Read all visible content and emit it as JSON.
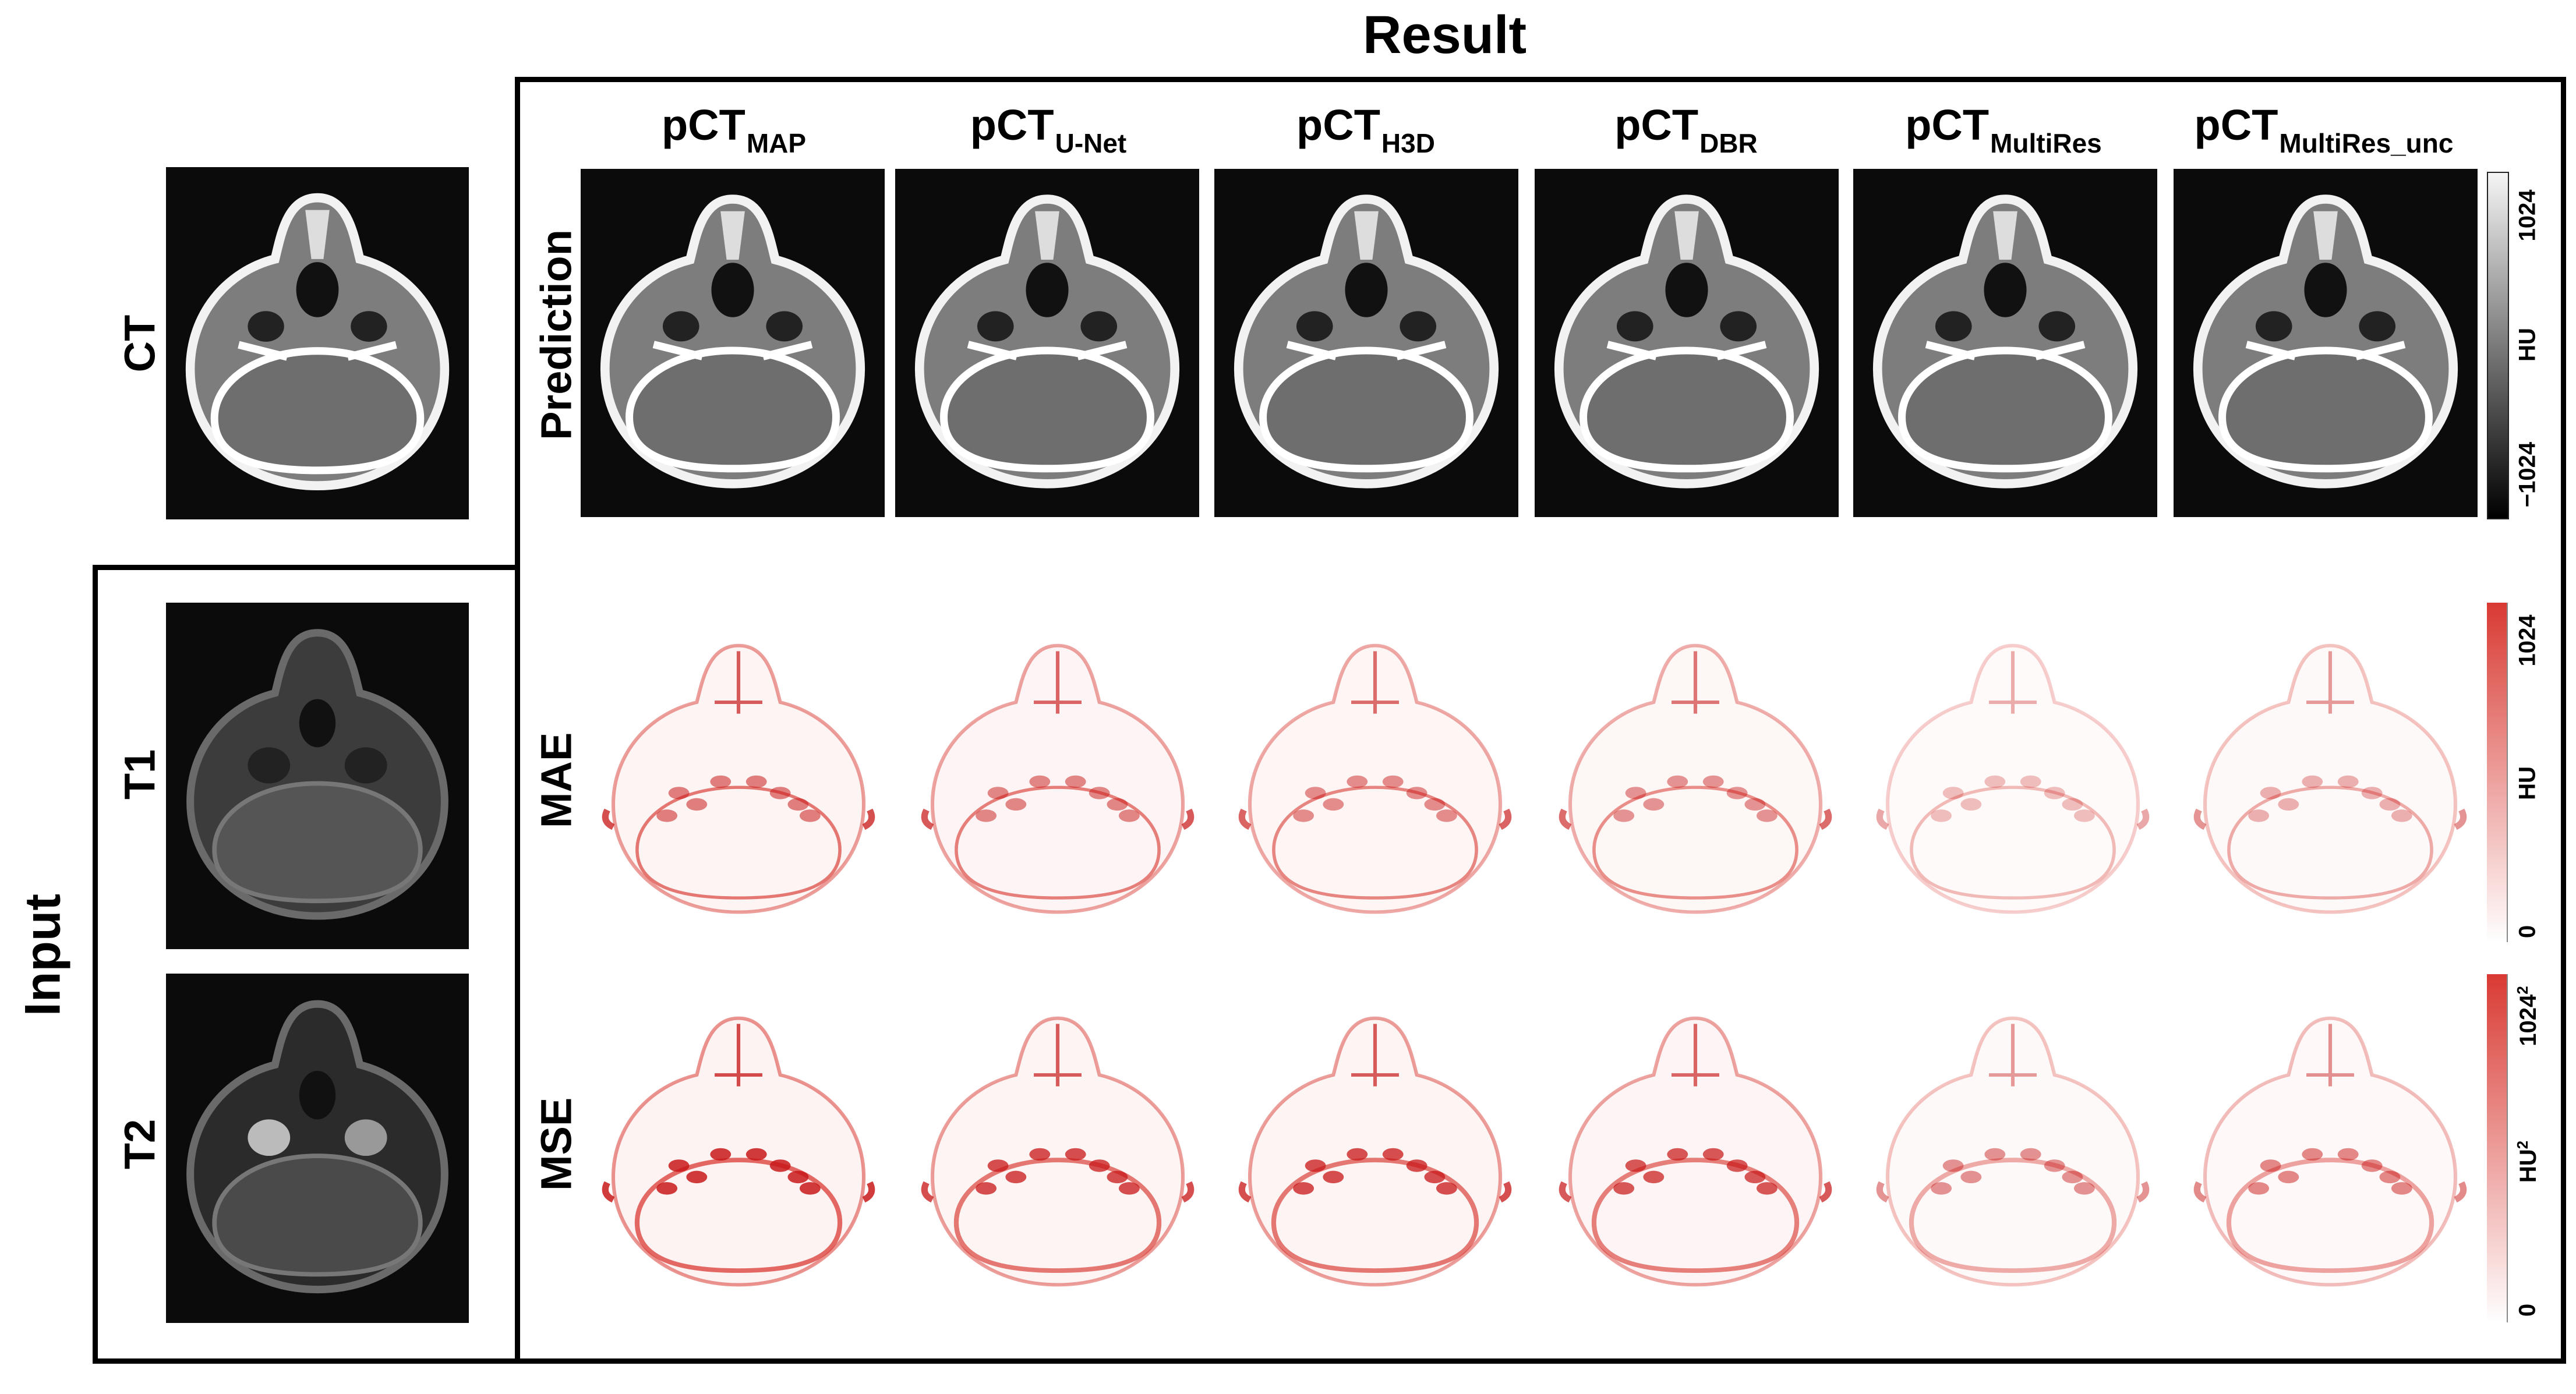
{
  "title": "Result",
  "side_label": "Input",
  "input_labels": [
    "CT",
    "T1",
    "T2"
  ],
  "columns": [
    {
      "main": "pCT",
      "sub": "MAP"
    },
    {
      "main": "pCT",
      "sub": "U-Net"
    },
    {
      "main": "pCT",
      "sub": "H3D"
    },
    {
      "main": "pCT",
      "sub": "DBR"
    },
    {
      "main": "pCT",
      "sub": "MultiRes"
    },
    {
      "main": "pCT",
      "sub": "MultiRes_unc"
    }
  ],
  "row_labels": [
    "Prediction",
    "MAE",
    "MSE"
  ],
  "colorbars": [
    {
      "top": "1024",
      "mid": "HU",
      "bottom": "−1024",
      "colors": [
        "#f5f5f5",
        "#000000"
      ]
    },
    {
      "top": "1024",
      "mid": "HU",
      "bottom": "0",
      "colors": [
        "#d93a33",
        "#ffffff"
      ]
    },
    {
      "top": "1024",
      "top_sup": "2",
      "mid": "HU",
      "mid_sup": "2",
      "bottom": "0",
      "colors": [
        "#d93a33",
        "#ffffff"
      ]
    }
  ]
}
